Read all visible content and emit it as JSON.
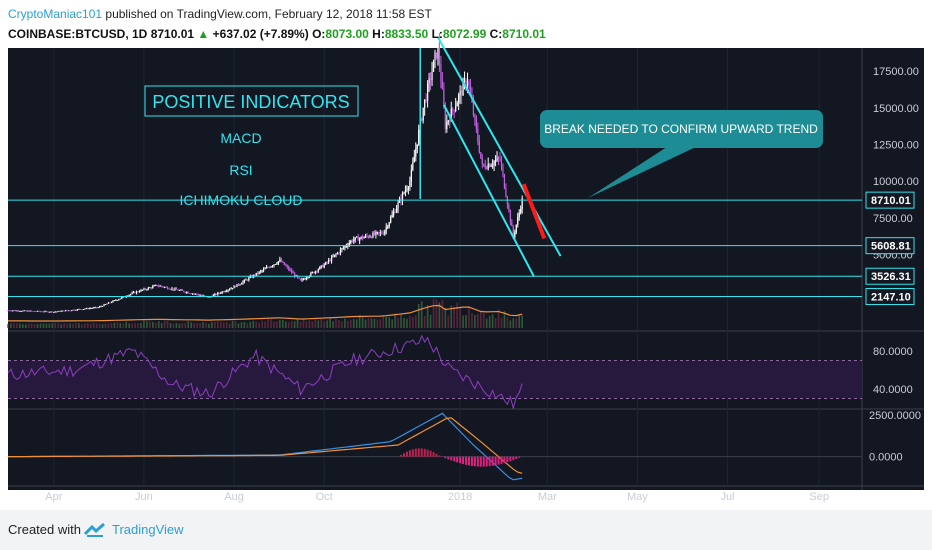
{
  "header": {
    "author": "CryptoManiac101",
    "published": "published on TradingView.com, February 12, 2018 11:58 EST"
  },
  "quote": {
    "symbol": "COINBASE:BTCUSD, 1D",
    "last": "8710.01",
    "change": "+637.02 (+7.89%)",
    "o_label": "O:",
    "o": "8073.00",
    "h_label": "H:",
    "h": "8833.50",
    "l_label": "L:",
    "l": "8072.99",
    "c_label": "C:",
    "c": "8710.01"
  },
  "annotations": {
    "positive_title": "POSITIVE INDICATORS",
    "indicators": [
      "MACD",
      "RSI",
      "ICHIMOKU CLOUD"
    ],
    "callout": "BREAK NEEDED TO CONFIRM UPWARD TREND"
  },
  "colors": {
    "background": "#131722",
    "cyan": "#2ee6f0",
    "teal_box": "#1e8c94",
    "red_break": "#ff1a1a",
    "candle_up": "#ffffff",
    "candle_down": "#c060e0",
    "rsi_line": "#8a3fc0",
    "macd_line": "#3a8fdf",
    "signal_line": "#f0903a"
  },
  "price_axis": {
    "ticks": [
      "17500.00",
      "15000.00",
      "12500.00",
      "10000.00",
      "7500.00",
      "5000.00"
    ],
    "levels": [
      "8710.01",
      "5608.81",
      "3526.31",
      "2147.10"
    ]
  },
  "rsi_axis": {
    "ticks": [
      "80.0000",
      "40.0000"
    ]
  },
  "macd_axis": {
    "ticks": [
      "2500.0000",
      "0.0000"
    ]
  },
  "time_axis": [
    "Apr",
    "Jun",
    "Aug",
    "Oct",
    "2018",
    "Mar",
    "May",
    "Jul",
    "Sep"
  ],
  "footer": {
    "created": "Created with",
    "brand": "TradingView"
  },
  "chart_data": [
    {
      "type": "candlestick",
      "title": "COINBASE:BTCUSD, 1D",
      "x_range": [
        "2017-03-01",
        "2018-09-30"
      ],
      "ylim": [
        0,
        19700
      ],
      "close_path": [
        [
          "2017-03-01",
          1200
        ],
        [
          "2017-04-01",
          1100
        ],
        [
          "2017-05-01",
          1400
        ],
        [
          "2017-05-25",
          2400
        ],
        [
          "2017-06-10",
          2900
        ],
        [
          "2017-07-15",
          2100
        ],
        [
          "2017-08-01",
          2800
        ],
        [
          "2017-09-01",
          4600
        ],
        [
          "2017-09-15",
          3200
        ],
        [
          "2017-10-01",
          4300
        ],
        [
          "2017-10-20",
          6000
        ],
        [
          "2017-11-10",
          6500
        ],
        [
          "2017-11-28",
          10000
        ],
        [
          "2017-12-07",
          15000
        ],
        [
          "2017-12-17",
          19200
        ],
        [
          "2017-12-22",
          13800
        ],
        [
          "2018-01-06",
          17000
        ],
        [
          "2018-01-16",
          11000
        ],
        [
          "2018-01-28",
          11500
        ],
        [
          "2018-02-06",
          6200
        ],
        [
          "2018-02-12",
          8710
        ]
      ],
      "horizontal_levels": [
        8710.01,
        5608.81,
        3526.31,
        2147.1
      ],
      "channel_upper": [
        [
          "2017-12-17",
          19800
        ],
        [
          "2018-03-10",
          4900
        ]
      ],
      "channel_lower": [
        [
          "2017-12-21",
          15200
        ],
        [
          "2018-02-20",
          3500
        ]
      ],
      "break_segment": [
        [
          "2018-02-13",
          9800
        ],
        [
          "2018-02-27",
          6100
        ]
      ],
      "volume_ma": "orange line along volume bars"
    },
    {
      "type": "line",
      "title": "RSI",
      "ylim": [
        20,
        100
      ],
      "bands": [
        70,
        30
      ],
      "path": [
        [
          "2017-03-01",
          55
        ],
        [
          "2017-04-15",
          60
        ],
        [
          "2017-05-25",
          80
        ],
        [
          "2017-06-20",
          45
        ],
        [
          "2017-07-15",
          35
        ],
        [
          "2017-08-15",
          75
        ],
        [
          "2017-09-15",
          40
        ],
        [
          "2017-10-20",
          70
        ],
        [
          "2017-12-10",
          92
        ],
        [
          "2017-12-25",
          60
        ],
        [
          "2018-01-16",
          42
        ],
        [
          "2018-02-06",
          24
        ],
        [
          "2018-02-12",
          40
        ]
      ]
    },
    {
      "type": "line",
      "title": "MACD",
      "series": [
        {
          "path": [
            [
              "2017-03-01",
              0
            ],
            [
              "2017-09-01",
              100
            ],
            [
              "2017-11-15",
              900
            ],
            [
              "2017-12-20",
              2600
            ],
            [
              "2018-01-10",
              700
            ],
            [
              "2018-02-05",
              -1400
            ],
            [
              "2018-02-12",
              -1300
            ]
          ]
        },
        {
          "path": [
            [
              "2017-03-01",
              0
            ],
            [
              "2017-09-01",
              80
            ],
            [
              "2017-11-20",
              700
            ],
            [
              "2017-12-25",
              2400
            ],
            [
              "2018-01-15",
              900
            ],
            [
              "2018-02-08",
              -900
            ],
            [
              "2018-02-12",
              -1000
            ]
          ]
        }
      ],
      "ylim": [
        -1700,
        2800
      ]
    }
  ]
}
